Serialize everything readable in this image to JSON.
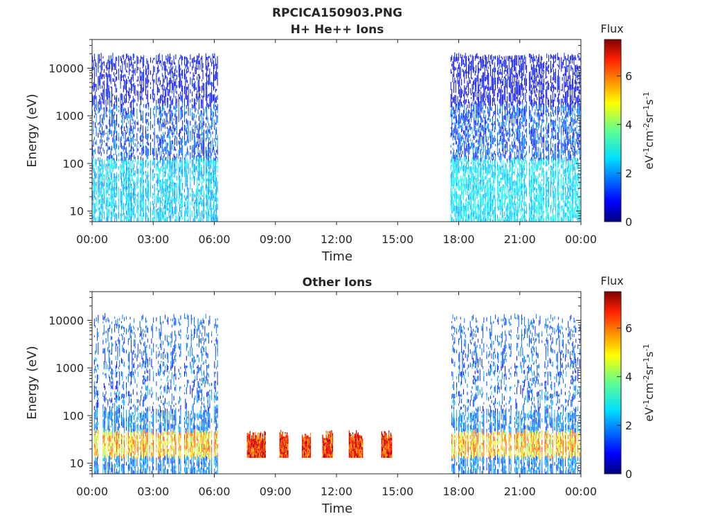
{
  "figure_title": "RPCICA150903.PNG",
  "chart_data": [
    {
      "type": "heatmap",
      "title": "H+ He++ Ions",
      "xlabel": "Time",
      "ylabel": "Energy (eV)",
      "x_tick_labels": [
        "00:00",
        "03:00",
        "06:00",
        "09:00",
        "12:00",
        "15:00",
        "18:00",
        "21:00",
        "00:00"
      ],
      "x_range_hours": [
        0,
        24
      ],
      "y_scale": "log",
      "y_ticks": [
        10,
        100,
        1000,
        10000
      ],
      "y_tick_labels": [
        "10",
        "100",
        "1000",
        "10000"
      ],
      "y_range_eV": [
        6,
        40000
      ],
      "colorbar": {
        "label": "Flux",
        "unit": "eV⁻¹cm⁻²sr⁻¹s⁻¹",
        "range": [
          0,
          7.5
        ],
        "ticks": [
          "0",
          "2",
          "4",
          "6"
        ],
        "colormap": "jet"
      },
      "regions": [
        {
          "t_start_h": 0.0,
          "t_end_h": 6.15,
          "e_min": 6,
          "e_max": 17000,
          "flux_high_energy": 0.6,
          "flux_mid": 1.5,
          "flux_low": 2.2,
          "density": 0.55
        },
        {
          "t_start_h": 17.6,
          "t_end_h": 24.0,
          "e_min": 6,
          "e_max": 17000,
          "flux_high_energy": 0.5,
          "flux_mid": 1.5,
          "flux_low": 2.4,
          "density": 0.6
        }
      ]
    },
    {
      "type": "heatmap",
      "title": "Other Ions",
      "xlabel": "Time",
      "ylabel": "Energy (eV)",
      "x_tick_labels": [
        "00:00",
        "03:00",
        "06:00",
        "09:00",
        "12:00",
        "15:00",
        "18:00",
        "21:00",
        "00:00"
      ],
      "x_range_hours": [
        0,
        24
      ],
      "y_scale": "log",
      "y_ticks": [
        10,
        100,
        1000,
        10000
      ],
      "y_tick_labels": [
        "10",
        "100",
        "1000",
        "10000"
      ],
      "y_range_eV": [
        6,
        40000
      ],
      "colorbar": {
        "label": "Flux",
        "unit": "eV⁻¹cm⁻²sr⁻¹s⁻¹",
        "range": [
          0,
          7.5
        ],
        "ticks": [
          "0",
          "2",
          "4",
          "6"
        ],
        "colormap": "jet"
      },
      "regions": [
        {
          "t_start_h": 0.0,
          "t_end_h": 6.15,
          "e_min": 6,
          "e_max": 11000,
          "flux_high_energy": 1.2,
          "flux_mid": 1.6,
          "band_min": 12,
          "band_max": 42,
          "flux_band": 5.0,
          "density": 0.35
        },
        {
          "t_start_h": 17.6,
          "t_end_h": 24.0,
          "e_min": 6,
          "e_max": 11000,
          "flux_high_energy": 1.2,
          "flux_mid": 1.6,
          "band_min": 12,
          "band_max": 42,
          "flux_band": 5.0,
          "density": 0.35
        }
      ],
      "bursts": [
        {
          "t_start_h": 7.6,
          "t_end_h": 8.5,
          "e_min": 13,
          "e_max": 50,
          "flux": 6.3
        },
        {
          "t_start_h": 9.2,
          "t_end_h": 9.6,
          "e_min": 13,
          "e_max": 50,
          "flux": 6.3
        },
        {
          "t_start_h": 10.3,
          "t_end_h": 10.7,
          "e_min": 13,
          "e_max": 50,
          "flux": 6.3
        },
        {
          "t_start_h": 11.3,
          "t_end_h": 11.8,
          "e_min": 13,
          "e_max": 50,
          "flux": 6.3
        },
        {
          "t_start_h": 12.6,
          "t_end_h": 13.3,
          "e_min": 13,
          "e_max": 50,
          "flux": 6.3
        },
        {
          "t_start_h": 14.2,
          "t_end_h": 14.7,
          "e_min": 13,
          "e_max": 50,
          "flux": 6.3
        }
      ]
    }
  ]
}
